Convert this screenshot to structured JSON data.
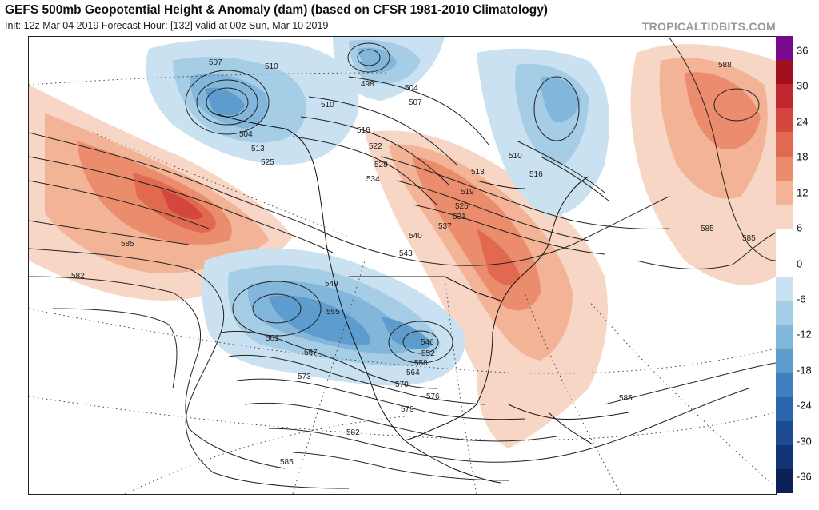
{
  "header": {
    "title": "GEFS 500mb Geopotential Height & Anomaly (dam) (based on CFSR 1981-2010 Climatology)",
    "subtitle": "Init: 12z Mar 04 2019   Forecast Hour: [132]   valid at 00z Sun, Mar 10 2019",
    "brand": "TROPICALTIDBITS.COM"
  },
  "colorbar": {
    "ticks": [
      "36",
      "30",
      "24",
      "18",
      "12",
      "6",
      "0",
      "-6",
      "-12",
      "-18",
      "-24",
      "-30",
      "-36"
    ],
    "colors": [
      "#7a0a8c",
      "#a0101e",
      "#c0272f",
      "#d3473e",
      "#e0694f",
      "#eb8d6c",
      "#f3b397",
      "#f8d6c5",
      "#ffffff",
      "#ffffff",
      "#c9e1f0",
      "#a6cde6",
      "#82b7db",
      "#5d9ccd",
      "#3f81bf",
      "#2b65ad",
      "#1d4b92",
      "#133577",
      "#0b2158"
    ]
  },
  "contour_labels": [
    "507",
    "510",
    "498",
    "504",
    "510",
    "516",
    "504",
    "513",
    "525",
    "522",
    "528",
    "534",
    "507",
    "513",
    "519",
    "525",
    "531",
    "537",
    "510",
    "516",
    "540",
    "543",
    "549",
    "555",
    "561",
    "567",
    "573",
    "546",
    "552",
    "558",
    "564",
    "570",
    "576",
    "579",
    "582",
    "585",
    "585",
    "582",
    "585",
    "585",
    "588",
    "585"
  ]
}
